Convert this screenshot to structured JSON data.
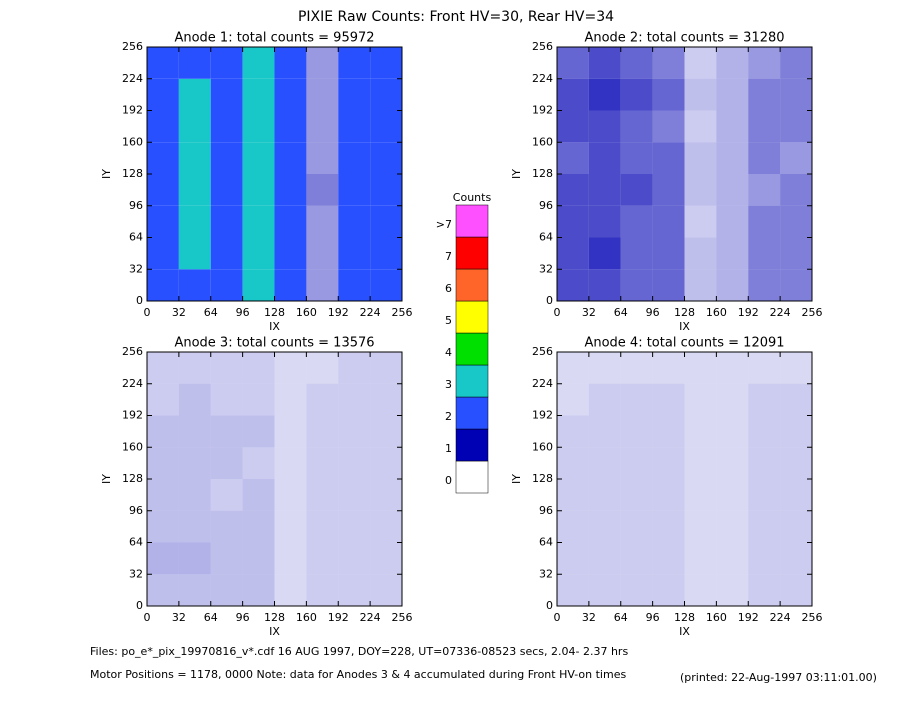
{
  "title": "PIXIE Raw Counts:  Front HV=30, Rear HV=34",
  "colorbar": {
    "title": "Counts",
    "labels": [
      "0",
      "1",
      "2",
      "3",
      "4",
      "5",
      "6",
      "7",
      ">7"
    ],
    "colors": [
      "#ffffff",
      "#0000b4",
      "#2850ff",
      "#18c8c8",
      "#00e000",
      "#ffff00",
      "#ff6428",
      "#ff0000",
      "#ff50ff"
    ]
  },
  "footer": {
    "files": "Files: po_e*_pix_19970816_v*.cdf     16 AUG 1997, DOY=228, UT=07336-08523 secs,  2.04- 2.37 hrs",
    "motor": "Motor Positions = 1178, 0000    Note: data for Anodes 3 & 4 accumulated during Front HV-on times",
    "printed": "(printed: 22-Aug-1997 03:11:01.00)"
  },
  "chart_data": [
    {
      "type": "heatmap",
      "title": "Anode 1: total counts = 95972",
      "x_label": "IX",
      "y_label": "IY",
      "xlim": [
        0,
        256
      ],
      "ylim": [
        0,
        256
      ],
      "xticks": [
        0,
        32,
        64,
        96,
        128,
        160,
        192,
        224,
        256
      ],
      "yticks": [
        0,
        32,
        64,
        96,
        128,
        160,
        192,
        224,
        256
      ],
      "xbins": [
        0,
        32,
        64,
        96,
        128,
        160,
        192,
        224,
        256
      ],
      "ybins": [
        0,
        32,
        64,
        96,
        128,
        160,
        192,
        224,
        256
      ],
      "values": [
        [
          1.2,
          1.9,
          1.4,
          2.1,
          1.1,
          0.4,
          1.2,
          1.1
        ],
        [
          1.3,
          2.0,
          1.5,
          2.2,
          1.2,
          0.4,
          1.3,
          1.2
        ],
        [
          1.3,
          2.1,
          1.5,
          2.3,
          1.2,
          0.4,
          1.3,
          1.2
        ],
        [
          1.4,
          2.1,
          1.6,
          2.3,
          1.3,
          0.5,
          1.4,
          1.3
        ],
        [
          1.3,
          2.0,
          1.5,
          2.2,
          1.2,
          0.4,
          1.3,
          1.2
        ],
        [
          1.2,
          2.0,
          1.4,
          2.1,
          1.1,
          0.4,
          1.2,
          1.1
        ],
        [
          1.4,
          2.2,
          1.6,
          2.4,
          1.2,
          0.4,
          1.3,
          1.2
        ],
        [
          1.3,
          1.9,
          1.5,
          2.1,
          1.2,
          0.4,
          1.2,
          1.1
        ]
      ]
    },
    {
      "type": "heatmap",
      "title": "Anode 2: total counts = 31280",
      "x_label": "IX",
      "y_label": "IY",
      "xlim": [
        0,
        256
      ],
      "ylim": [
        0,
        256
      ],
      "xticks": [
        0,
        32,
        64,
        96,
        128,
        160,
        192,
        224,
        256
      ],
      "yticks": [
        0,
        32,
        64,
        96,
        128,
        160,
        192,
        224,
        256
      ],
      "xbins": [
        0,
        32,
        64,
        96,
        128,
        160,
        192,
        224,
        256
      ],
      "ybins": [
        0,
        32,
        64,
        96,
        128,
        160,
        192,
        224,
        256
      ],
      "values": [
        [
          0.7,
          0.7,
          0.6,
          0.6,
          0.25,
          0.3,
          0.5,
          0.5
        ],
        [
          0.7,
          0.8,
          0.6,
          0.6,
          0.25,
          0.3,
          0.5,
          0.5
        ],
        [
          0.7,
          0.7,
          0.6,
          0.6,
          0.2,
          0.3,
          0.5,
          0.5
        ],
        [
          0.7,
          0.7,
          0.7,
          0.6,
          0.25,
          0.3,
          0.4,
          0.5
        ],
        [
          0.6,
          0.7,
          0.6,
          0.6,
          0.25,
          0.3,
          0.5,
          0.4
        ],
        [
          0.7,
          0.7,
          0.6,
          0.5,
          0.2,
          0.3,
          0.5,
          0.5
        ],
        [
          0.7,
          0.8,
          0.7,
          0.6,
          0.25,
          0.3,
          0.5,
          0.5
        ],
        [
          0.6,
          0.7,
          0.6,
          0.5,
          0.2,
          0.3,
          0.4,
          0.5
        ]
      ]
    },
    {
      "type": "heatmap",
      "title": "Anode 3: total counts = 13576",
      "x_label": "IX",
      "y_label": "IY",
      "xlim": [
        0,
        256
      ],
      "ylim": [
        0,
        256
      ],
      "xticks": [
        0,
        32,
        64,
        96,
        128,
        160,
        192,
        224,
        256
      ],
      "yticks": [
        0,
        32,
        64,
        96,
        128,
        160,
        192,
        224,
        256
      ],
      "xbins": [
        0,
        32,
        64,
        96,
        128,
        160,
        192,
        224,
        256
      ],
      "ybins": [
        0,
        32,
        64,
        96,
        128,
        160,
        192,
        224,
        256
      ],
      "values": [
        [
          0.25,
          0.25,
          0.25,
          0.25,
          0.15,
          0.2,
          0.2,
          0.2
        ],
        [
          0.3,
          0.3,
          0.25,
          0.25,
          0.15,
          0.2,
          0.2,
          0.2
        ],
        [
          0.25,
          0.25,
          0.25,
          0.25,
          0.15,
          0.2,
          0.2,
          0.2
        ],
        [
          0.25,
          0.25,
          0.2,
          0.25,
          0.15,
          0.2,
          0.2,
          0.2
        ],
        [
          0.25,
          0.25,
          0.25,
          0.2,
          0.15,
          0.2,
          0.2,
          0.2
        ],
        [
          0.25,
          0.25,
          0.25,
          0.25,
          0.15,
          0.2,
          0.2,
          0.2
        ],
        [
          0.2,
          0.25,
          0.2,
          0.2,
          0.15,
          0.2,
          0.2,
          0.2
        ],
        [
          0.2,
          0.2,
          0.2,
          0.2,
          0.15,
          0.15,
          0.2,
          0.2
        ]
      ]
    },
    {
      "type": "heatmap",
      "title": "Anode 4: total counts = 12091",
      "x_label": "IX",
      "y_label": "IY",
      "xlim": [
        0,
        256
      ],
      "ylim": [
        0,
        256
      ],
      "xticks": [
        0,
        32,
        64,
        96,
        128,
        160,
        192,
        224,
        256
      ],
      "yticks": [
        0,
        32,
        64,
        96,
        128,
        160,
        192,
        224,
        256
      ],
      "xbins": [
        0,
        32,
        64,
        96,
        128,
        160,
        192,
        224,
        256
      ],
      "ybins": [
        0,
        32,
        64,
        96,
        128,
        160,
        192,
        224,
        256
      ],
      "values": [
        [
          0.2,
          0.2,
          0.2,
          0.2,
          0.15,
          0.15,
          0.2,
          0.2
        ],
        [
          0.2,
          0.2,
          0.2,
          0.2,
          0.15,
          0.15,
          0.2,
          0.2
        ],
        [
          0.2,
          0.2,
          0.2,
          0.2,
          0.15,
          0.15,
          0.2,
          0.2
        ],
        [
          0.2,
          0.2,
          0.2,
          0.2,
          0.15,
          0.15,
          0.2,
          0.2
        ],
        [
          0.2,
          0.2,
          0.2,
          0.2,
          0.15,
          0.15,
          0.2,
          0.2
        ],
        [
          0.2,
          0.2,
          0.2,
          0.2,
          0.15,
          0.15,
          0.2,
          0.2
        ],
        [
          0.15,
          0.2,
          0.2,
          0.2,
          0.15,
          0.15,
          0.2,
          0.2
        ],
        [
          0.15,
          0.15,
          0.15,
          0.15,
          0.15,
          0.15,
          0.15,
          0.15
        ]
      ]
    }
  ]
}
